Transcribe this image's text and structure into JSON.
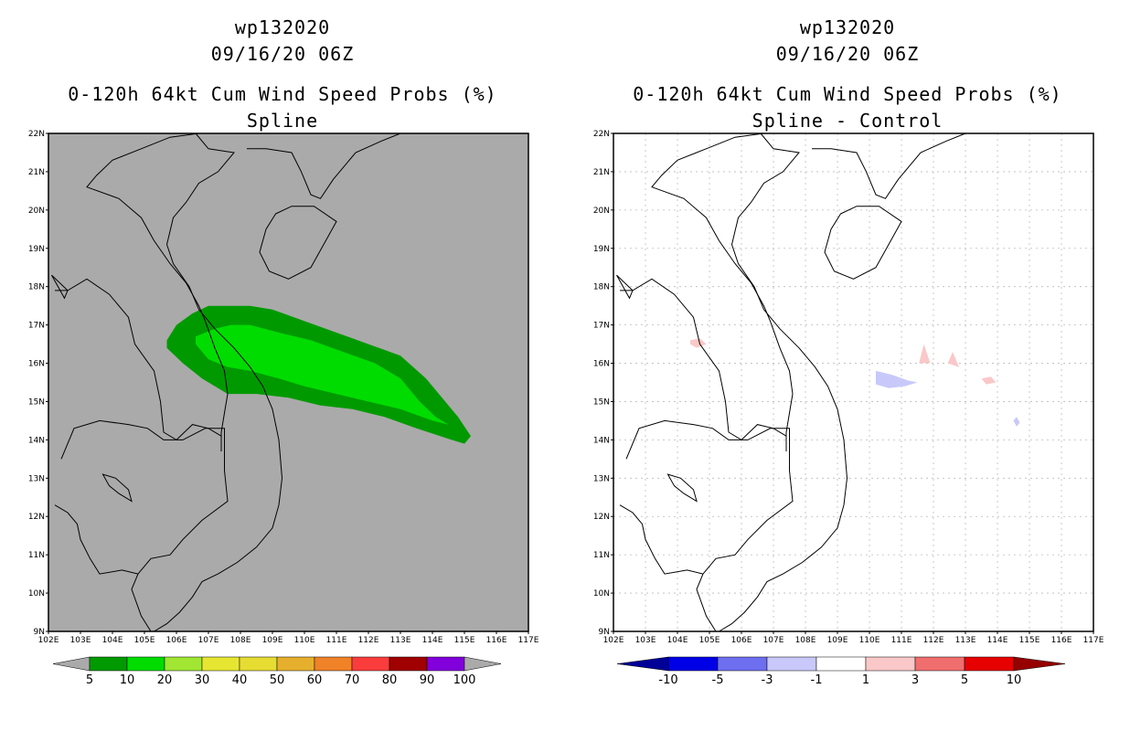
{
  "panels": [
    {
      "id": "left",
      "storm_id": "wp132020",
      "datetime": "09/16/20 06Z",
      "product": "0-120h 64kt Cum Wind Speed Probs (%)",
      "subtitle": "Spline",
      "background": "#aaaaaa",
      "colorbar": {
        "levels": [
          "5",
          "10",
          "20",
          "30",
          "40",
          "50",
          "60",
          "70",
          "80",
          "90",
          "100"
        ],
        "colors": [
          "#009a00",
          "#00dc00",
          "#a0e632",
          "#e6e632",
          "#e6dc32",
          "#e6af2d",
          "#f08228",
          "#fa3c3c",
          "#a00000",
          "#8200dc"
        ],
        "end_color": "#aaaaaa"
      },
      "probability_swath": [
        {
          "min_pct": 5,
          "color": "#009a00"
        },
        {
          "min_pct": 10,
          "color": "#00dc00"
        }
      ]
    },
    {
      "id": "right",
      "storm_id": "wp132020",
      "datetime": "09/16/20 06Z",
      "product": "0-120h 64kt Cum Wind Speed Probs (%)",
      "subtitle": "Spline - Control",
      "background": "#ffffff",
      "colorbar": {
        "levels": [
          "-10",
          "-5",
          "-3",
          "-1",
          "1",
          "3",
          "5",
          "10"
        ],
        "colors": [
          "#0000e6",
          "#6e6ef0",
          "#c8c8fa",
          "#ffffff",
          "#fac8c8",
          "#f06e6e",
          "#e60000"
        ],
        "low_end_color": "#000096",
        "high_end_color": "#960000"
      },
      "differences": [
        {
          "label": "small increase",
          "color": "#fac8c8",
          "lon": 104.6,
          "lat": 16.5
        },
        {
          "label": "small decrease",
          "color": "#c8c8fa",
          "lon": 110.7,
          "lat": 15.5
        },
        {
          "label": "small increase",
          "color": "#fac8c8",
          "lon": 111.7,
          "lat": 16.2
        },
        {
          "label": "small increase",
          "color": "#fac8c8",
          "lon": 112.6,
          "lat": 16.1
        },
        {
          "label": "small increase",
          "color": "#fac8c8",
          "lon": 113.7,
          "lat": 15.6
        },
        {
          "label": "small decrease",
          "color": "#c8c8fa",
          "lon": 114.6,
          "lat": 14.5
        }
      ]
    }
  ],
  "map": {
    "lon_min": 102,
    "lon_max": 117,
    "lat_min": 9,
    "lat_max": 22,
    "lon_labels": [
      "102E",
      "103E",
      "104E",
      "105E",
      "106E",
      "107E",
      "108E",
      "109E",
      "110E",
      "111E",
      "112E",
      "113E",
      "114E",
      "115E",
      "116E",
      "117E"
    ],
    "lat_labels": [
      "9N",
      "10N",
      "11N",
      "12N",
      "13N",
      "14N",
      "15N",
      "16N",
      "17N",
      "18N",
      "19N",
      "20N",
      "21N",
      "22N"
    ]
  }
}
